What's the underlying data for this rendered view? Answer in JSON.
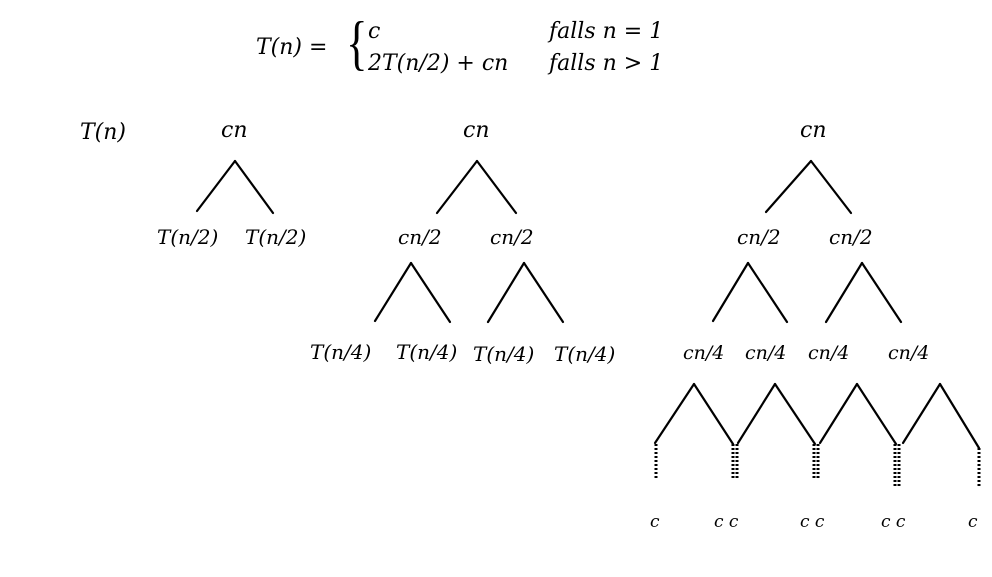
{
  "recurrence": {
    "lhs": "T(n) =",
    "case1_expr": "c",
    "case1_cond": "falls n = 1",
    "case2_expr": "2T(n/2) + cn",
    "case2_cond": "falls n > 1"
  },
  "stage0": {
    "label": "T(n)"
  },
  "stage1": {
    "root": "cn",
    "left": "T(n/2)",
    "right": "T(n/2)"
  },
  "stage2": {
    "root": "cn",
    "level1": [
      "cn/2",
      "cn/2"
    ],
    "level2": [
      "T(n/4)",
      "T(n/4)",
      "T(n/4)",
      "T(n/4)"
    ]
  },
  "stage3": {
    "root": "cn",
    "level1": [
      "cn/2",
      "cn/2"
    ],
    "level2": [
      "cn/4",
      "cn/4",
      "cn/4",
      "cn/4"
    ],
    "leaves": [
      "c",
      "c c",
      "c c",
      "c c",
      "c"
    ]
  }
}
